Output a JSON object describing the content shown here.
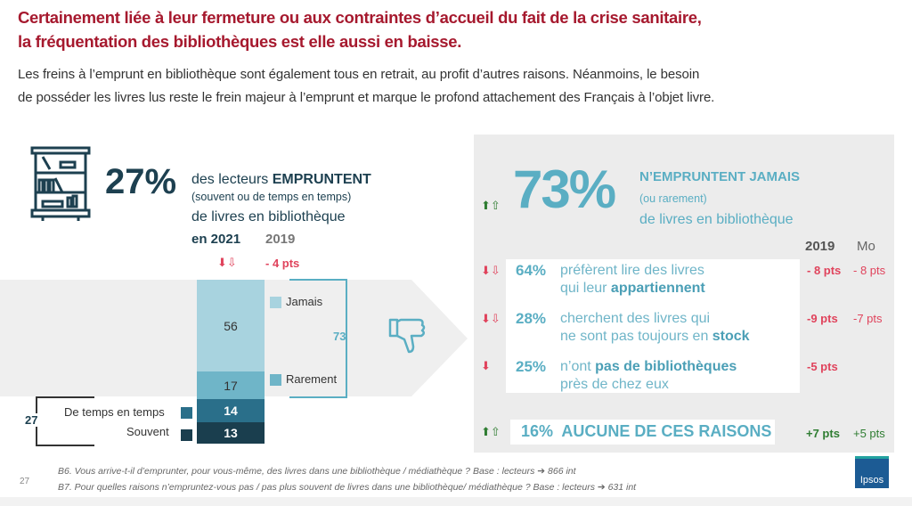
{
  "header": {
    "title_line1": "Certainement liée à leur fermeture ou aux contraintes d’accueil du fait de la crise sanitaire,",
    "title_line2": "la fréquentation des bibliothèques est elle aussi en baisse.",
    "subtitle_line1": "Les freins à l’emprunt en bibliothèque sont également tous en retrait, au profit d’autres raisons. Néanmoins, le besoin",
    "subtitle_line2": "de posséder les livres lus reste le frein majeur à l’emprunt et marque le profond attachement des Français à l’objet livre."
  },
  "left": {
    "big_pct": "27%",
    "line1_pre": "des lecteurs ",
    "line1_bold": "EMPRUNTENT",
    "line2": "(souvent ou de temps en temps)",
    "line3": "de livres en bibliothèque",
    "year_current": "en 2021",
    "year_compare": "2019",
    "delta": "- 4 pts",
    "bracket_never": "73",
    "bracket_borrow": "27"
  },
  "chart_data": {
    "type": "bar",
    "stacked": true,
    "categories": [
      "en 2021"
    ],
    "series": [
      {
        "name": "Jamais",
        "values": [
          56
        ],
        "color": "#a8d3df"
      },
      {
        "name": "Rarement",
        "values": [
          17
        ],
        "color": "#6fb5c8"
      },
      {
        "name": "De temps en temps",
        "values": [
          14
        ],
        "color": "#2a6f8a"
      },
      {
        "name": "Souvent",
        "values": [
          13
        ],
        "color": "#1a3e4e"
      }
    ]
  },
  "right": {
    "big_pct": "73%",
    "line1": "N’EMPRUNTENT JAMAIS",
    "line2": "(ou rarement)",
    "line3": "de livres en bibliothèque",
    "col1": "2019",
    "col2": "Mo",
    "reasons": [
      {
        "pct": "64%",
        "l1": "préfèrent lire des livres",
        "l2_pre": "qui leur ",
        "l2_bold": "appartiennent",
        "d1": "- 8 pts",
        "d2": "- 8 pts",
        "arrow": "down-double"
      },
      {
        "pct": "28%",
        "l1": "cherchent des livres qui",
        "l2_pre": "ne sont pas toujours en ",
        "l2_bold": "stock",
        "d1": "-9 pts",
        "d2": "-7 pts",
        "arrow": "down-double"
      },
      {
        "pct": "25%",
        "l1_pre": "n’ont ",
        "l1_bold": "pas de bibliothèques",
        "l2": "près de chez eux",
        "d1": "-5 pts",
        "arrow": "down-single"
      }
    ],
    "none": {
      "pct": "16%",
      "label": "AUCUNE DE CES RAISONS",
      "d1": "+7 pts",
      "d2": "+5 pts"
    }
  },
  "footer": {
    "page": "27",
    "note1": "B6. Vous arrive-t-il d’emprunter, pour vous-même,  des livres dans une bibliothèque / médiathèque ? Base : lecteurs ➔ 866 int",
    "note2": "B7. Pour quelles raisons n’empruntez-vous pas / pas plus souvent de livres dans une bibliothèque/ médiathèque ? Base : lecteurs ➔ 631 int",
    "logo": "Ipsos"
  },
  "colors": {
    "title": "#a6192e",
    "dark": "#1d4050",
    "teal": "#5aaec3",
    "red": "#e0435c",
    "green": "#2f7d32"
  }
}
